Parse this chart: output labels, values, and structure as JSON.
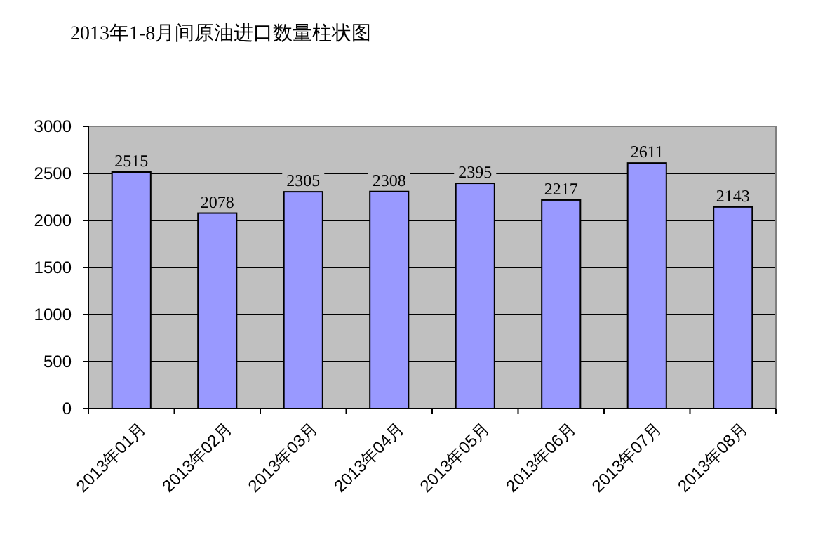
{
  "chart_data": {
    "type": "bar",
    "title": "2013年1-8月间原油进口数量柱状图",
    "categories": [
      "2013年01月",
      "2013年02月",
      "2013年03月",
      "2013年04月",
      "2013年05月",
      "2013年06月",
      "2013年07月",
      "2013年08月"
    ],
    "values": [
      2515,
      2078,
      2305,
      2308,
      2395,
      2217,
      2611,
      2143
    ],
    "color": "#9999ff",
    "ylim": [
      0,
      3000
    ],
    "yticks": [
      0,
      500,
      1000,
      1500,
      2000,
      2500,
      3000
    ],
    "grid": "y",
    "data_labels": true
  }
}
